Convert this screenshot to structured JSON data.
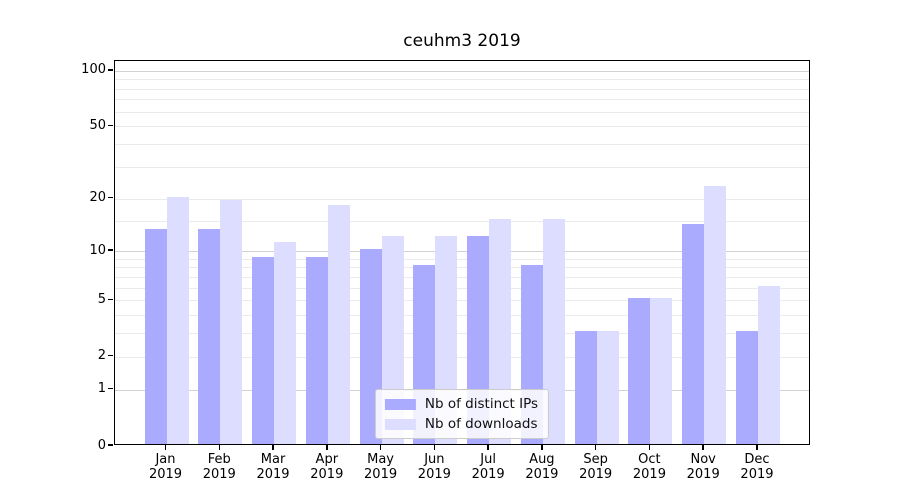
{
  "figure": {
    "title": "ceuhm3 2019",
    "background": "#ffffff"
  },
  "chart_data": {
    "type": "bar",
    "title": "ceuhm3 2019",
    "year_label": "2019",
    "categories": [
      "Jan",
      "Feb",
      "Mar",
      "Apr",
      "May",
      "Jun",
      "Jul",
      "Aug",
      "Sep",
      "Oct",
      "Nov",
      "Dec"
    ],
    "series": [
      {
        "name": "Nb of distinct IPs",
        "color": "#aaaaff",
        "values": [
          13,
          13,
          9,
          9,
          10,
          8,
          12,
          8,
          3,
          5,
          14,
          3
        ]
      },
      {
        "name": "Nb of downloads",
        "color": "#ddddff",
        "values": [
          20,
          19,
          11,
          18,
          12,
          12,
          15,
          15,
          3,
          5,
          23,
          6
        ]
      }
    ],
    "xlabel": "",
    "ylabel": "",
    "y_axis": {
      "scale": "log10(1+x)",
      "tick_labels": [
        "100",
        "50",
        "20",
        "10",
        "5",
        "2",
        "1",
        "0"
      ],
      "tick_values": [
        100,
        50,
        20,
        10,
        5,
        2,
        1,
        0
      ],
      "minor_gridlines": [
        2,
        3,
        4,
        5,
        6,
        7,
        8,
        9,
        15,
        20,
        30,
        40,
        50,
        60,
        70,
        80,
        90
      ],
      "major_gridlines": [
        1,
        10,
        100
      ],
      "ylim": [
        0,
        113
      ]
    },
    "grid": true,
    "legend_position": "lower center"
  }
}
